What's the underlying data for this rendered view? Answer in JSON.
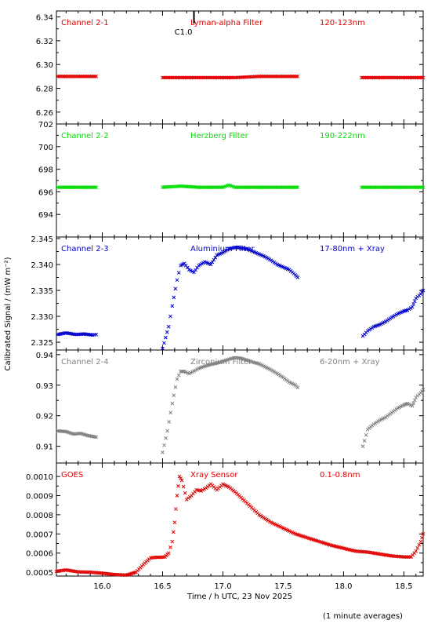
{
  "ylabel": "Calibrated Signal / (mW m⁻²)",
  "xlabel": "Time / h UTC, 23 Nov 2025",
  "footer": "(1 minute averages)",
  "annotation": "C1.0",
  "colors": {
    "red": "#e00000",
    "green": "#00dd00",
    "blue": "#0000cc",
    "gray": "#808080"
  },
  "x_axis": {
    "range": [
      15.62,
      18.66
    ],
    "ticks": [
      "16.0",
      "16.5",
      "17.0",
      "17.5",
      "18.0",
      "18.5"
    ],
    "tick_values": [
      16.0,
      16.5,
      17.0,
      17.5,
      18.0,
      18.5
    ]
  },
  "chart_data": [
    {
      "type": "scatter",
      "labels": [
        "Channel 2-1",
        "Lyman-alpha Filter",
        "120-123nm"
      ],
      "color": "red",
      "ylim": [
        6.25,
        6.345
      ],
      "yticks": [
        "6.26",
        "6.28",
        "6.30",
        "6.32",
        "6.34"
      ],
      "ytick_values": [
        6.26,
        6.28,
        6.3,
        6.32,
        6.34
      ],
      "series": [
        {
          "x": [
            15.63,
            15.7,
            15.8,
            15.88,
            15.95
          ],
          "y": [
            6.29,
            6.29,
            6.29,
            6.29,
            6.29
          ]
        },
        {
          "x": [
            16.5,
            16.7,
            16.9,
            17.1,
            17.3,
            17.5,
            17.62
          ],
          "y": [
            6.289,
            6.289,
            6.289,
            6.289,
            6.29,
            6.29,
            6.29
          ]
        },
        {
          "x": [
            18.15,
            18.3,
            18.45,
            18.6,
            18.66
          ],
          "y": [
            6.289,
            6.289,
            6.289,
            6.289,
            6.289
          ]
        }
      ]
    },
    {
      "type": "scatter",
      "labels": [
        "Channel 2-2",
        "Herzberg Filter",
        "190-222nm"
      ],
      "color": "green",
      "ylim": [
        692.0,
        702.0
      ],
      "yticks": [
        "694",
        "696",
        "698",
        "700",
        "702"
      ],
      "ytick_values": [
        694,
        696,
        698,
        700,
        702
      ],
      "series": [
        {
          "x": [
            15.63,
            15.75,
            15.88,
            15.95
          ],
          "y": [
            696.4,
            696.4,
            696.4,
            696.4
          ]
        },
        {
          "x": [
            16.5,
            16.65,
            16.8,
            17.0,
            17.05,
            17.1,
            17.3,
            17.5,
            17.62
          ],
          "y": [
            696.4,
            696.5,
            696.4,
            696.4,
            696.6,
            696.4,
            696.4,
            696.4,
            696.4
          ]
        },
        {
          "x": [
            18.15,
            18.35,
            18.55,
            18.66
          ],
          "y": [
            696.4,
            696.4,
            696.4,
            696.4
          ]
        }
      ]
    },
    {
      "type": "scatter",
      "labels": [
        "Channel 2-3",
        "Aluminium Filter",
        "17-80nm + Xray"
      ],
      "color": "blue",
      "ylim": [
        2.3235,
        2.3453
      ],
      "yticks": [
        "2.325",
        "2.330",
        "2.335",
        "2.340",
        "2.345"
      ],
      "ytick_values": [
        2.325,
        2.33,
        2.335,
        2.34,
        2.345
      ],
      "series": [
        {
          "x": [
            15.63,
            15.7,
            15.78,
            15.85,
            15.92,
            15.95
          ],
          "y": [
            2.3265,
            2.3268,
            2.3265,
            2.3266,
            2.3264,
            2.3265
          ]
        },
        {
          "x": [
            16.5,
            16.55,
            16.58,
            16.62,
            16.65,
            16.68,
            16.72,
            16.76,
            16.8,
            16.85,
            16.9,
            16.95,
            17.0,
            17.05,
            17.1,
            17.15,
            17.2,
            17.25,
            17.3,
            17.35,
            17.4,
            17.45,
            17.5,
            17.55,
            17.6,
            17.62
          ],
          "y": [
            2.3238,
            2.328,
            2.332,
            2.337,
            2.3398,
            2.3402,
            2.339,
            2.3385,
            2.3398,
            2.3405,
            2.34,
            2.3418,
            2.3423,
            2.343,
            2.3433,
            2.3432,
            2.343,
            2.3425,
            2.342,
            2.3415,
            2.3408,
            2.34,
            2.3395,
            2.339,
            2.338,
            2.3375
          ]
        },
        {
          "x": [
            18.16,
            18.2,
            18.25,
            18.3,
            18.35,
            18.4,
            18.45,
            18.5,
            18.53,
            18.57,
            18.6,
            18.64,
            18.66
          ],
          "y": [
            2.3262,
            2.3272,
            2.328,
            2.3284,
            2.329,
            2.3298,
            2.3305,
            2.331,
            2.3312,
            2.3318,
            2.3335,
            2.3343,
            2.335
          ]
        }
      ]
    },
    {
      "type": "scatter",
      "labels": [
        "Channel 2-4",
        "Zirconium Filter",
        "6-20nm + Xray"
      ],
      "color": "gray",
      "ylim": [
        0.9045,
        0.9415
      ],
      "yticks": [
        "0.91",
        "0.92",
        "0.93",
        "0.94"
      ],
      "ytick_values": [
        0.91,
        0.92,
        0.93,
        0.94
      ],
      "series": [
        {
          "x": [
            15.63,
            15.7,
            15.76,
            15.82,
            15.88,
            15.95
          ],
          "y": [
            0.915,
            0.9148,
            0.914,
            0.9142,
            0.9135,
            0.913
          ]
        },
        {
          "x": [
            16.5,
            16.54,
            16.58,
            16.62,
            16.65,
            16.68,
            16.72,
            16.76,
            16.8,
            16.85,
            16.9,
            16.95,
            17.0,
            17.05,
            17.1,
            17.15,
            17.2,
            17.25,
            17.3,
            17.35,
            17.4,
            17.45,
            17.5,
            17.55,
            17.6,
            17.62
          ],
          "y": [
            0.908,
            0.915,
            0.924,
            0.932,
            0.9345,
            0.9345,
            0.9338,
            0.9346,
            0.9355,
            0.9362,
            0.9368,
            0.9372,
            0.9378,
            0.9385,
            0.939,
            0.9388,
            0.9382,
            0.9375,
            0.937,
            0.936,
            0.935,
            0.9338,
            0.9325,
            0.931,
            0.93,
            0.9292
          ]
        },
        {
          "x": [
            18.16,
            18.2,
            18.25,
            18.3,
            18.35,
            18.4,
            18.45,
            18.5,
            18.53,
            18.57,
            18.6,
            18.64,
            18.66
          ],
          "y": [
            0.91,
            0.9155,
            0.9172,
            0.9185,
            0.9195,
            0.921,
            0.9225,
            0.9235,
            0.924,
            0.9232,
            0.926,
            0.9275,
            0.9285
          ]
        }
      ]
    },
    {
      "type": "scatter",
      "labels": [
        "GOES",
        "Xray Sensor",
        "0.1-0.8nm"
      ],
      "color": "red",
      "ylim": [
        0.00048,
        0.00107
      ],
      "yticks": [
        "0.0005",
        "0.0006",
        "0.0007",
        "0.0008",
        "0.0009",
        "0.0010"
      ],
      "ytick_values": [
        0.0005,
        0.0006,
        0.0007,
        0.0008,
        0.0009,
        0.001
      ],
      "series": [
        {
          "x": [
            15.62,
            15.7,
            15.8,
            15.9,
            16.0,
            16.1,
            16.2,
            16.28,
            16.34,
            16.4,
            16.45,
            16.48,
            16.52,
            16.55,
            16.58,
            16.6,
            16.62,
            16.64,
            16.66,
            16.7,
            16.74,
            16.78,
            16.82,
            16.86,
            16.9,
            16.95,
            17.0,
            17.05,
            17.1,
            17.2,
            17.3,
            17.4,
            17.5,
            17.6,
            17.7,
            17.8,
            17.9,
            18.0,
            18.1,
            18.2,
            18.3,
            18.4,
            18.5,
            18.56,
            18.6,
            18.64,
            18.66
          ],
          "y": [
            0.000505,
            0.000512,
            0.000502,
            0.0005,
            0.000495,
            0.000488,
            0.000485,
            0.0005,
            0.00054,
            0.000575,
            0.000578,
            0.000578,
            0.00058,
            0.0006,
            0.00066,
            0.00076,
            0.0009,
            0.001,
            0.00098,
            0.00088,
            0.0009,
            0.00093,
            0.000925,
            0.00094,
            0.00096,
            0.00093,
            0.00096,
            0.000945,
            0.00092,
            0.00086,
            0.0008,
            0.00076,
            0.00073,
            0.0007,
            0.00068,
            0.00066,
            0.00064,
            0.000625,
            0.00061,
            0.000605,
            0.000595,
            0.000585,
            0.00058,
            0.00058,
            0.00061,
            0.00066,
            0.0007
          ]
        }
      ]
    }
  ]
}
